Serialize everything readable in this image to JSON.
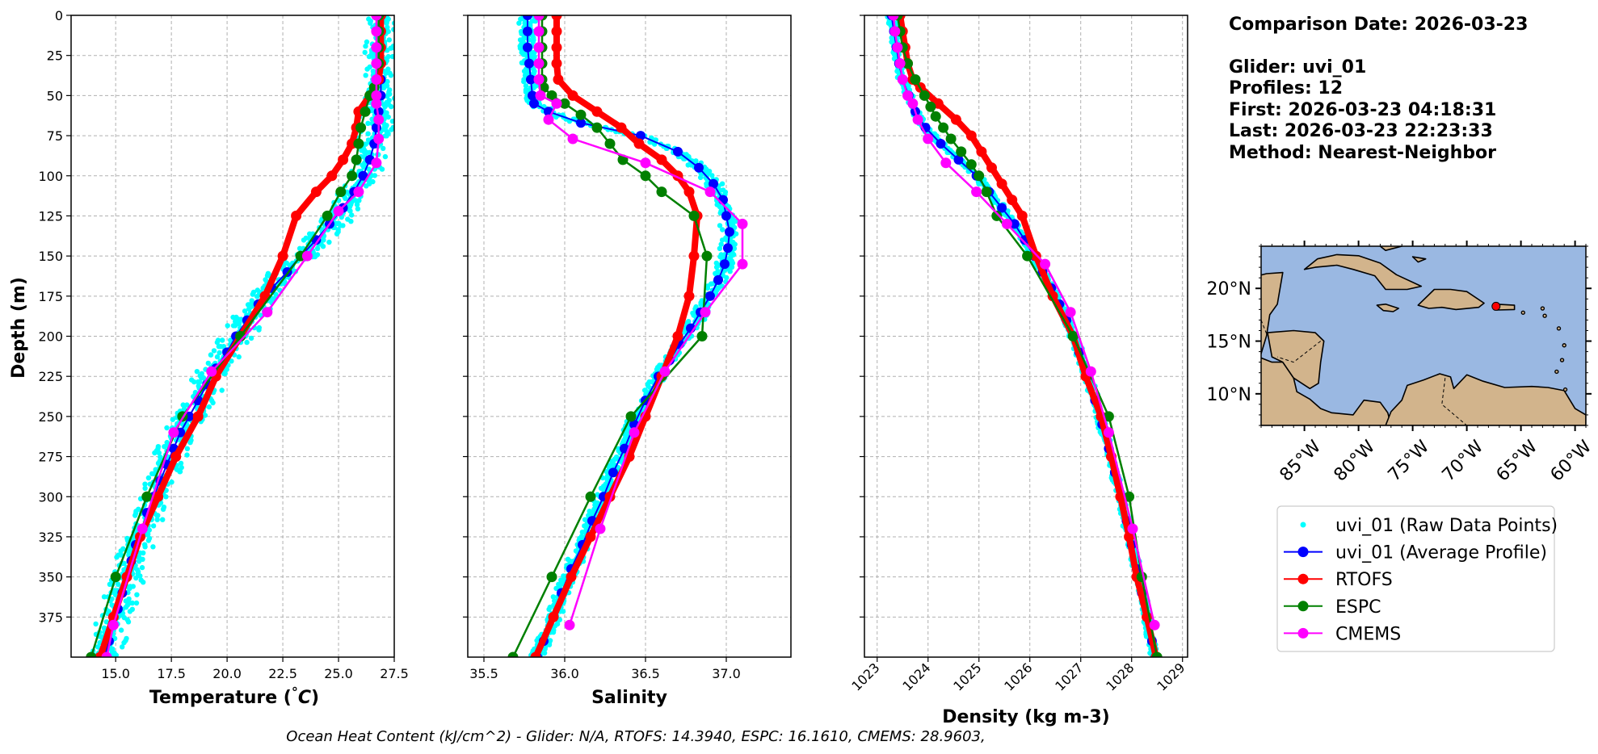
{
  "info": {
    "comparison_date": "Comparison Date: 2026-03-23",
    "glider": "Glider: uvi_01",
    "profiles": "Profiles: 12",
    "first": "First: 2026-03-23 04:18:31",
    "last": "Last: 2026-03-23 22:23:33",
    "method": "Method: Nearest-Neighbor"
  },
  "footer": "Ocean Heat Content (kJ/cm^2) - Glider: N/A,  RTOFS: 14.3940,  ESPC: 16.1610,  CMEMS: 28.9603,",
  "colors": {
    "raw": "#00ffff",
    "average": "#0000ff",
    "rtofs": "#ff0000",
    "espc": "#008000",
    "cmems": "#ff00ff",
    "ocean": "#9ab8e2",
    "land": "#d2b48c"
  },
  "legend": [
    {
      "label": "uvi_01 (Raw Data Points)",
      "key": "raw"
    },
    {
      "label": "uvi_01 (Average Profile)",
      "key": "average"
    },
    {
      "label": "RTOFS",
      "key": "rtofs"
    },
    {
      "label": "ESPC",
      "key": "espc"
    },
    {
      "label": "CMEMS",
      "key": "cmems"
    }
  ],
  "map": {
    "lat_ticks": [
      "20°N",
      "15°N",
      "10°N"
    ],
    "lon_ticks": [
      "85°W",
      "80°W",
      "75°W",
      "70°W",
      "65°W",
      "60°W"
    ],
    "lat_values": [
      20,
      15,
      10
    ],
    "lon_values": [
      -85,
      -80,
      -75,
      -70,
      -65,
      -60
    ],
    "lon_range": [
      -89,
      -59
    ],
    "lat_range": [
      7,
      24
    ],
    "glider_position": [
      -67.3,
      18.3
    ]
  },
  "chart_data": [
    {
      "type": "line",
      "xlabel": "Temperature (°C)",
      "ylabel": "Depth (m)",
      "xlim": [
        13.0,
        27.5
      ],
      "ylim": [
        400,
        0
      ],
      "xticks": [
        15.0,
        17.5,
        20.0,
        22.5,
        25.0,
        27.5
      ],
      "xtick_labels": [
        "15.0",
        "17.5",
        "20.0",
        "22.5",
        "25.0",
        "27.5"
      ],
      "yticks": [
        0,
        25,
        50,
        75,
        100,
        125,
        150,
        175,
        200,
        225,
        250,
        275,
        300,
        325,
        350,
        375
      ],
      "grid": true,
      "series": [
        {
          "name": "uvi_01 (Average Profile)",
          "key": "average",
          "depth": [
            0,
            10,
            20,
            30,
            40,
            50,
            60,
            70,
            80,
            90,
            100,
            110,
            120,
            130,
            140,
            150,
            160,
            170,
            180,
            190,
            200,
            210,
            220,
            230,
            240,
            250,
            260,
            270,
            280,
            290,
            300,
            310,
            320,
            330,
            340,
            350,
            360,
            370,
            380,
            390,
            400
          ],
          "values": [
            26.9,
            26.9,
            26.9,
            26.9,
            26.9,
            26.9,
            26.8,
            26.7,
            26.6,
            26.4,
            26.1,
            25.7,
            25.2,
            24.6,
            24.0,
            23.3,
            22.7,
            22.0,
            21.4,
            20.9,
            20.4,
            20.0,
            19.5,
            19.1,
            18.7,
            18.3,
            17.9,
            17.6,
            17.3,
            17.0,
            16.7,
            16.4,
            16.2,
            15.9,
            15.7,
            15.5,
            15.3,
            15.1,
            14.9,
            14.7,
            14.5
          ]
        },
        {
          "name": "RTOFS",
          "key": "rtofs",
          "depth": [
            0,
            10,
            20,
            30,
            40,
            50,
            60,
            70,
            80,
            90,
            100,
            110,
            125,
            150,
            175,
            200,
            225,
            250,
            275,
            300,
            325,
            350,
            375,
            400
          ],
          "values": [
            26.9,
            26.9,
            26.9,
            26.9,
            26.8,
            26.4,
            25.9,
            25.8,
            25.6,
            25.2,
            24.7,
            24.0,
            23.1,
            22.5,
            21.7,
            20.6,
            19.5,
            18.7,
            17.7,
            16.9,
            16.1,
            15.5,
            14.9,
            14.3
          ]
        },
        {
          "name": "ESPC",
          "key": "espc",
          "depth": [
            0,
            10,
            20,
            30,
            45,
            50,
            60,
            70,
            80,
            90,
            100,
            110,
            125,
            150,
            200,
            250,
            300,
            350,
            400
          ],
          "values": [
            26.8,
            26.8,
            26.8,
            26.8,
            26.6,
            26.4,
            26.2,
            26.0,
            25.9,
            25.8,
            25.6,
            25.1,
            24.5,
            23.3,
            20.6,
            18.0,
            16.4,
            15.0,
            13.9
          ]
        },
        {
          "name": "CMEMS",
          "key": "cmems",
          "depth": [
            0,
            10,
            20,
            30,
            40,
            50,
            55,
            65,
            77,
            92,
            110,
            122,
            150,
            185,
            222,
            260,
            320,
            380,
            400
          ],
          "values": [
            26.7,
            26.7,
            26.7,
            26.7,
            26.7,
            26.7,
            26.7,
            26.8,
            26.8,
            26.7,
            25.9,
            25.0,
            23.6,
            21.8,
            19.3,
            17.6,
            16.2,
            14.9,
            14.6
          ]
        }
      ],
      "raw": {
        "name": "uvi_01 (Raw Data Points)",
        "key": "raw",
        "spread": 0.9
      }
    },
    {
      "type": "line",
      "xlabel": "Salinity",
      "xlim": [
        35.4,
        37.4
      ],
      "ylim": [
        400,
        0
      ],
      "xticks": [
        35.5,
        36.0,
        36.5,
        37.0
      ],
      "xtick_labels": [
        "35.5",
        "36.0",
        "36.5",
        "37.0"
      ],
      "yticks": [
        0,
        25,
        50,
        75,
        100,
        125,
        150,
        175,
        200,
        225,
        250,
        275,
        300,
        325,
        350,
        375
      ],
      "grid": true,
      "series": [
        {
          "name": "uvi_01 (Average Profile)",
          "key": "average",
          "depth": [
            0,
            10,
            20,
            30,
            40,
            50,
            55,
            60,
            67,
            75,
            85,
            95,
            105,
            115,
            125,
            135,
            145,
            155,
            165,
            175,
            185,
            195,
            205,
            215,
            225,
            240,
            255,
            270,
            285,
            300,
            315,
            330,
            345,
            360,
            375,
            390,
            400
          ],
          "values": [
            35.77,
            35.77,
            35.77,
            35.78,
            35.79,
            35.8,
            35.81,
            35.9,
            36.1,
            36.47,
            36.7,
            36.83,
            36.92,
            36.98,
            37.0,
            37.02,
            37.01,
            36.99,
            36.95,
            36.9,
            36.84,
            36.78,
            36.71,
            36.65,
            36.58,
            36.5,
            36.43,
            36.37,
            36.3,
            36.24,
            36.17,
            36.11,
            36.04,
            35.98,
            35.93,
            35.87,
            35.83
          ]
        },
        {
          "name": "RTOFS",
          "key": "rtofs",
          "depth": [
            0,
            10,
            20,
            30,
            40,
            50,
            60,
            70,
            80,
            90,
            100,
            110,
            125,
            150,
            175,
            200,
            225,
            250,
            275,
            300,
            325,
            350,
            375,
            400
          ],
          "values": [
            35.95,
            35.95,
            35.95,
            35.95,
            35.96,
            36.05,
            36.2,
            36.35,
            36.46,
            36.6,
            36.7,
            36.77,
            36.82,
            36.8,
            36.77,
            36.7,
            36.6,
            36.5,
            36.4,
            36.28,
            36.16,
            36.04,
            35.93,
            35.82
          ]
        },
        {
          "name": "ESPC",
          "key": "espc",
          "depth": [
            0,
            10,
            20,
            30,
            40,
            45,
            50,
            55,
            62,
            70,
            80,
            90,
            100,
            110,
            125,
            150,
            200,
            250,
            300,
            350,
            400
          ],
          "values": [
            35.86,
            35.86,
            35.86,
            35.86,
            35.86,
            35.87,
            35.92,
            36.0,
            36.1,
            36.2,
            36.28,
            36.36,
            36.5,
            36.6,
            36.8,
            36.88,
            36.85,
            36.41,
            36.16,
            35.92,
            35.68
          ]
        },
        {
          "name": "CMEMS",
          "key": "cmems",
          "depth": [
            0,
            10,
            20,
            30,
            40,
            50,
            55,
            65,
            77,
            92,
            110,
            130,
            155,
            185,
            222,
            260,
            320,
            380
          ],
          "values": [
            35.84,
            35.84,
            35.84,
            35.84,
            35.84,
            35.85,
            35.95,
            35.9,
            36.05,
            36.5,
            36.9,
            37.1,
            37.1,
            36.87,
            36.62,
            36.43,
            36.22,
            36.03
          ]
        }
      ],
      "raw": {
        "name": "uvi_01 (Raw Data Points)",
        "key": "raw",
        "spread": 0.06
      }
    },
    {
      "type": "line",
      "xlabel": "Density (kg m-3)",
      "xlim": [
        1022.75,
        1029.1
      ],
      "ylim": [
        400,
        0
      ],
      "xticks": [
        1023,
        1024,
        1025,
        1026,
        1027,
        1028,
        1029
      ],
      "xtick_labels": [
        "1023",
        "1024",
        "1025",
        "1026",
        "1027",
        "1028",
        "1029"
      ],
      "yticks": [
        0,
        25,
        50,
        75,
        100,
        125,
        150,
        175,
        200,
        225,
        250,
        275,
        300,
        325,
        350,
        375
      ],
      "grid": true,
      "series": [
        {
          "name": "uvi_01 (Average Profile)",
          "key": "average",
          "depth": [
            0,
            10,
            20,
            30,
            40,
            50,
            60,
            70,
            80,
            90,
            100,
            110,
            120,
            130,
            140,
            150,
            160,
            170,
            180,
            190,
            200,
            210,
            225,
            240,
            255,
            270,
            285,
            300,
            315,
            330,
            345,
            360,
            375,
            390,
            400
          ],
          "values": [
            1023.28,
            1023.33,
            1023.38,
            1023.43,
            1023.5,
            1023.62,
            1023.75,
            1023.95,
            1024.25,
            1024.6,
            1024.95,
            1025.2,
            1025.45,
            1025.7,
            1025.9,
            1026.08,
            1026.25,
            1026.42,
            1026.58,
            1026.72,
            1026.85,
            1026.97,
            1027.13,
            1027.28,
            1027.42,
            1027.55,
            1027.67,
            1027.8,
            1027.9,
            1028.0,
            1028.1,
            1028.2,
            1028.3,
            1028.4,
            1028.47
          ]
        },
        {
          "name": "RTOFS",
          "key": "rtofs",
          "depth": [
            0,
            10,
            20,
            30,
            40,
            45,
            55,
            65,
            75,
            85,
            95,
            105,
            115,
            125,
            150,
            175,
            200,
            225,
            250,
            275,
            300,
            325,
            350,
            375,
            400
          ],
          "values": [
            1023.45,
            1023.5,
            1023.55,
            1023.6,
            1023.7,
            1023.85,
            1024.2,
            1024.55,
            1024.85,
            1025.05,
            1025.25,
            1025.45,
            1025.65,
            1025.85,
            1026.12,
            1026.45,
            1026.85,
            1027.1,
            1027.4,
            1027.6,
            1027.78,
            1027.95,
            1028.1,
            1028.3,
            1028.48
          ]
        },
        {
          "name": "ESPC",
          "key": "espc",
          "depth": [
            0,
            10,
            20,
            30,
            40,
            50,
            57,
            63,
            70,
            77,
            85,
            93,
            100,
            110,
            125,
            150,
            200,
            250,
            300,
            350,
            400
          ],
          "values": [
            1023.4,
            1023.45,
            1023.5,
            1023.6,
            1023.75,
            1023.93,
            1024.05,
            1024.15,
            1024.3,
            1024.45,
            1024.65,
            1024.85,
            1025.0,
            1025.15,
            1025.35,
            1025.95,
            1026.85,
            1027.55,
            1027.95,
            1028.2,
            1028.5
          ]
        },
        {
          "name": "CMEMS",
          "key": "cmems",
          "depth": [
            0,
            10,
            20,
            30,
            40,
            50,
            55,
            65,
            77,
            92,
            110,
            130,
            155,
            185,
            222,
            260,
            320,
            380
          ],
          "values": [
            1023.32,
            1023.35,
            1023.4,
            1023.45,
            1023.5,
            1023.6,
            1023.7,
            1023.8,
            1024.0,
            1024.35,
            1024.95,
            1025.55,
            1026.3,
            1026.8,
            1027.2,
            1027.55,
            1028.02,
            1028.45
          ]
        }
      ],
      "raw": {
        "name": "uvi_01 (Raw Data Points)",
        "key": "raw",
        "spread": 0.1
      }
    }
  ]
}
